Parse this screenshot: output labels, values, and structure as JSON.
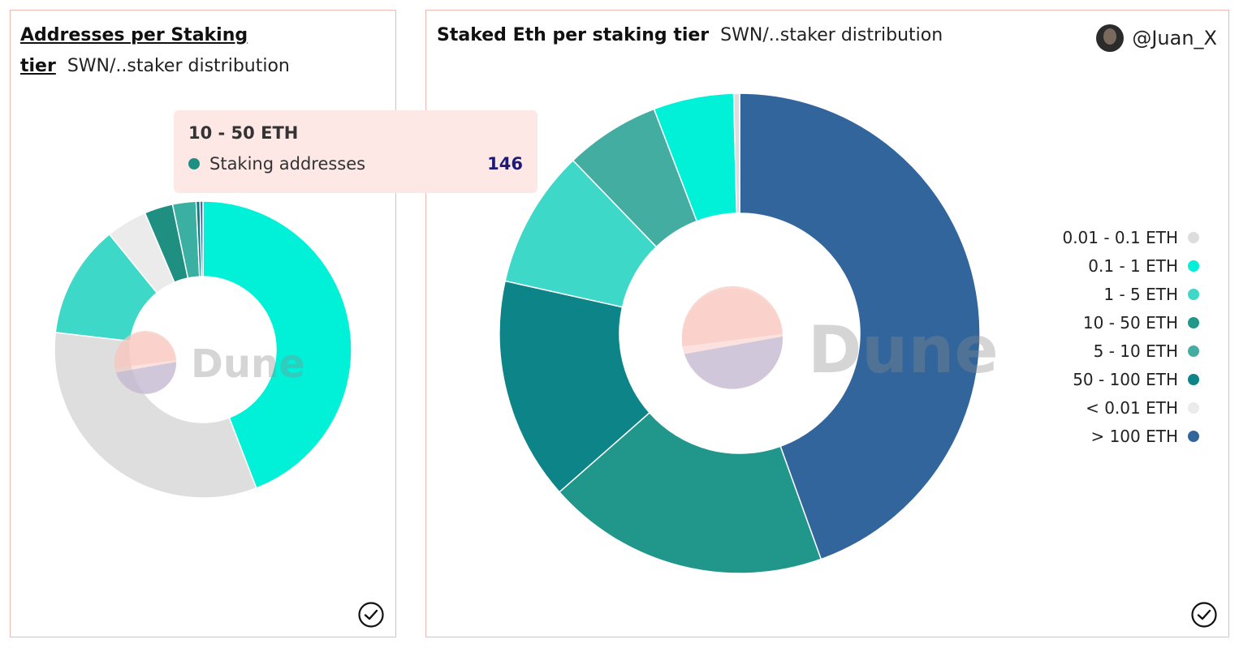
{
  "user": {
    "handle": "@Juan_X"
  },
  "watermark": "Dune",
  "chart_data": [
    {
      "type": "pie",
      "donut": true,
      "title": "Addresses per Staking tier",
      "subtitle": "SWN/..staker distribution",
      "categories": [
        "0.1 - 1 ETH",
        "< 0.01 ETH",
        "1 - 5 ETH",
        "0.01 - 0.1 ETH",
        "10 - 50 ETH",
        "5 - 10 ETH",
        "50 - 100 ETH",
        "> 100 ETH"
      ],
      "values": [
        2080,
        1540,
        580,
        210,
        146,
        120,
        20,
        15
      ],
      "colors": [
        "#00f0d8",
        "#dedede",
        "#3ed8c8",
        "#ebebeb",
        "#1f8f82",
        "#3aafa2",
        "#0c7f85",
        "#31639b"
      ],
      "legend": "none"
    },
    {
      "type": "pie",
      "donut": true,
      "title": "Staked Eth per staking tier",
      "subtitle": "SWN/..staker distribution",
      "categories": [
        "> 100 ETH",
        "10 - 50 ETH",
        "50 - 100 ETH",
        "1 - 5 ETH",
        "5 - 10 ETH",
        "0.1 - 1 ETH",
        "0.01 - 0.1 ETH"
      ],
      "values": [
        44.5,
        19.0,
        15.0,
        9.3,
        6.4,
        5.4,
        0.4
      ],
      "colors": [
        "#32659c",
        "#21968a",
        "#0d8488",
        "#3ed8c8",
        "#44ada2",
        "#00f0d8",
        "#dddddd"
      ],
      "legend_items": [
        {
          "label": "0.01 - 0.1 ETH",
          "color": "#dddddd"
        },
        {
          "label": "0.1 - 1 ETH",
          "color": "#00f0d8"
        },
        {
          "label": "1 - 5 ETH",
          "color": "#3ed8c8"
        },
        {
          "label": "10 - 50 ETH",
          "color": "#21968a"
        },
        {
          "label": "5 - 10 ETH",
          "color": "#44ada2"
        },
        {
          "label": "50 - 100 ETH",
          "color": "#0d8488"
        },
        {
          "label": "< 0.01 ETH",
          "color": "#ebebeb"
        },
        {
          "label": "> 100 ETH",
          "color": "#32659c"
        }
      ],
      "legend": "right"
    }
  ],
  "tooltip": {
    "title": "10 - 50 ETH",
    "series_label": "Staking addresses",
    "value": "146",
    "color": "#1f8f82"
  }
}
